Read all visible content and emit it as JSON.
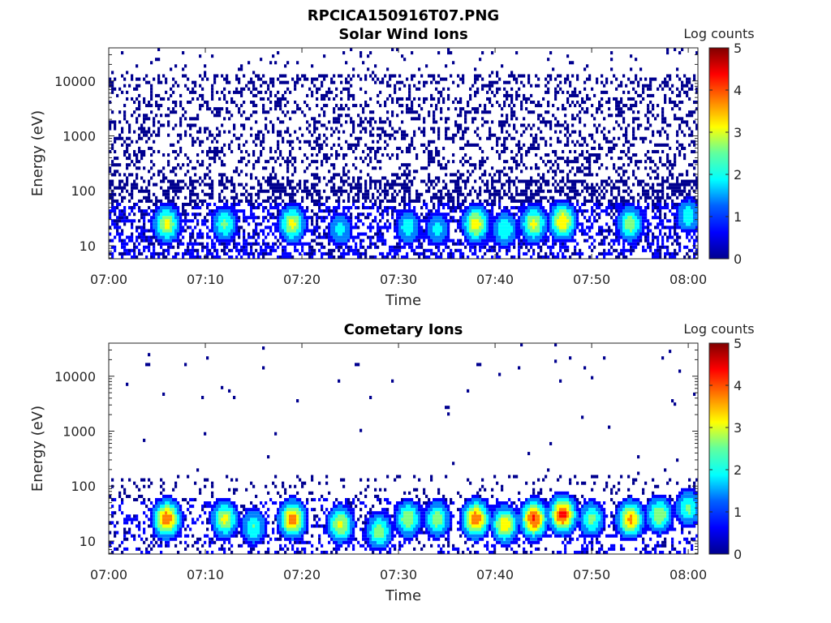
{
  "figure": {
    "title": "RPCICA150916T07.PNG"
  },
  "colormap": [
    "#00008f",
    "#0000ff",
    "#0080ff",
    "#00ffff",
    "#80ff80",
    "#ffff00",
    "#ff8000",
    "#ff0000",
    "#800000"
  ],
  "chart_data": [
    {
      "type": "heatmap",
      "title": "Solar Wind Ions",
      "xlabel": "Time",
      "ylabel": "Energy (eV)",
      "x_ticks": [
        "07:00",
        "07:10",
        "07:20",
        "07:30",
        "07:40",
        "07:50",
        "08:00"
      ],
      "x_range": [
        "07:00",
        "08:01"
      ],
      "y_scale": "log",
      "y_ticks": [
        "10",
        "100",
        "1000",
        "10000"
      ],
      "y_range": [
        5.8,
        40000
      ],
      "colorbar": {
        "label": "Log counts",
        "ticks": [
          "0",
          "1",
          "2",
          "3",
          "4",
          "5"
        ],
        "range": [
          0,
          5
        ]
      },
      "bursts": [
        {
          "t": "07:06",
          "energy": 25,
          "peak_log_counts": 3.0
        },
        {
          "t": "07:12",
          "energy": 25,
          "peak_log_counts": 2.3
        },
        {
          "t": "07:19",
          "energy": 25,
          "peak_log_counts": 3.0
        },
        {
          "t": "07:24",
          "energy": 20,
          "peak_log_counts": 1.8
        },
        {
          "t": "07:31",
          "energy": 22,
          "peak_log_counts": 2.0
        },
        {
          "t": "07:34",
          "energy": 20,
          "peak_log_counts": 1.8
        },
        {
          "t": "07:38",
          "energy": 25,
          "peak_log_counts": 3.2
        },
        {
          "t": "07:41",
          "energy": 20,
          "peak_log_counts": 2.2
        },
        {
          "t": "07:44",
          "energy": 25,
          "peak_log_counts": 3.0
        },
        {
          "t": "07:47",
          "energy": 28,
          "peak_log_counts": 3.4
        },
        {
          "t": "07:54",
          "energy": 25,
          "peak_log_counts": 2.6
        },
        {
          "t": "08:00",
          "energy": 35,
          "peak_log_counts": 2.0
        }
      ]
    },
    {
      "type": "heatmap",
      "title": "Cometary Ions",
      "xlabel": "Time",
      "ylabel": "Energy (eV)",
      "x_ticks": [
        "07:00",
        "07:10",
        "07:20",
        "07:30",
        "07:40",
        "07:50",
        "08:00"
      ],
      "x_range": [
        "07:00",
        "08:01"
      ],
      "y_scale": "log",
      "y_ticks": [
        "10",
        "100",
        "1000",
        "10000"
      ],
      "y_range": [
        5.8,
        40000
      ],
      "colorbar": {
        "label": "Log counts",
        "ticks": [
          "0",
          "1",
          "2",
          "3",
          "4",
          "5"
        ],
        "range": [
          0,
          5
        ]
      },
      "bursts": [
        {
          "t": "07:06",
          "energy": 25,
          "peak_log_counts": 4.0
        },
        {
          "t": "07:12",
          "energy": 25,
          "peak_log_counts": 3.0
        },
        {
          "t": "07:15",
          "energy": 18,
          "peak_log_counts": 2.2
        },
        {
          "t": "07:19",
          "energy": 25,
          "peak_log_counts": 3.8
        },
        {
          "t": "07:24",
          "energy": 20,
          "peak_log_counts": 3.0
        },
        {
          "t": "07:28",
          "energy": 15,
          "peak_log_counts": 2.6
        },
        {
          "t": "07:31",
          "energy": 25,
          "peak_log_counts": 2.8
        },
        {
          "t": "07:34",
          "energy": 25,
          "peak_log_counts": 2.6
        },
        {
          "t": "07:38",
          "energy": 25,
          "peak_log_counts": 4.0
        },
        {
          "t": "07:41",
          "energy": 20,
          "peak_log_counts": 3.3
        },
        {
          "t": "07:44",
          "energy": 25,
          "peak_log_counts": 4.2
        },
        {
          "t": "07:47",
          "energy": 30,
          "peak_log_counts": 4.3
        },
        {
          "t": "07:50",
          "energy": 25,
          "peak_log_counts": 2.4
        },
        {
          "t": "07:54",
          "energy": 25,
          "peak_log_counts": 3.6
        },
        {
          "t": "07:57",
          "energy": 30,
          "peak_log_counts": 2.8
        },
        {
          "t": "08:00",
          "energy": 40,
          "peak_log_counts": 2.4
        }
      ]
    }
  ]
}
